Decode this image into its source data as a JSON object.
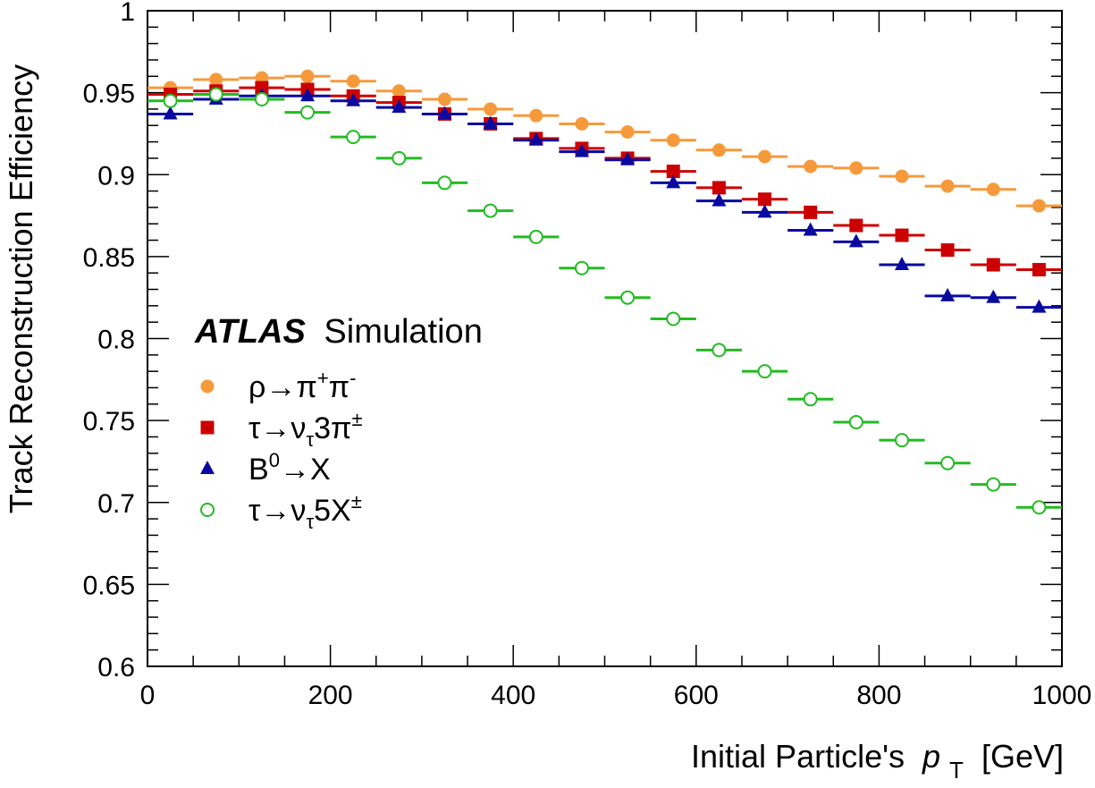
{
  "chart_data": {
    "type": "scatter",
    "xlabel": "Initial Particle's",
    "xlabel_var": "p",
    "xlabel_sub": "T",
    "xlabel_unit": "[GeV]",
    "ylabel": "Track Reconstruction Efficiency",
    "xlim": [
      0,
      1000
    ],
    "ylim": [
      0.6,
      1.0
    ],
    "x_ticks": [
      "0",
      "200",
      "400",
      "600",
      "800",
      "1000"
    ],
    "y_ticks": [
      "0.6",
      "0.65",
      "0.7",
      "0.75",
      "0.8",
      "0.85",
      "0.9",
      "0.95",
      "1"
    ],
    "bin_width": 50,
    "x": [
      25,
      75,
      125,
      175,
      225,
      275,
      325,
      375,
      425,
      475,
      525,
      575,
      625,
      675,
      725,
      775,
      825,
      875,
      925,
      975
    ],
    "legend_header_bold": "ATLAS",
    "legend_header": "Simulation",
    "legend_placement": "center-left",
    "series": [
      {
        "name": "ρ→π⁺π⁻",
        "marker": "circle",
        "color": "#f59a3b",
        "values": [
          0.953,
          0.958,
          0.959,
          0.96,
          0.957,
          0.951,
          0.946,
          0.94,
          0.936,
          0.931,
          0.926,
          0.921,
          0.915,
          0.911,
          0.905,
          0.904,
          0.899,
          0.893,
          0.891,
          0.881
        ]
      },
      {
        "name": "τ→ν_τ3π^±",
        "marker": "square",
        "color": "#cc0000",
        "values": [
          0.949,
          0.951,
          0.953,
          0.952,
          0.948,
          0.944,
          0.937,
          0.931,
          0.922,
          0.916,
          0.91,
          0.902,
          0.892,
          0.885,
          0.877,
          0.869,
          0.863,
          0.854,
          0.845,
          0.842
        ]
      },
      {
        "name": "B⁰→X",
        "marker": "triangle",
        "color": "#0a0aa0",
        "values": [
          0.937,
          0.946,
          0.948,
          0.948,
          0.945,
          0.941,
          0.937,
          0.931,
          0.921,
          0.914,
          0.909,
          0.895,
          0.884,
          0.877,
          0.866,
          0.859,
          0.845,
          0.826,
          0.825,
          0.819
        ]
      },
      {
        "name": "τ→ν_τ5X^±",
        "marker": "open-circle",
        "color": "#22bb22",
        "values": [
          0.945,
          0.949,
          0.946,
          0.938,
          0.923,
          0.91,
          0.895,
          0.878,
          0.862,
          0.843,
          0.825,
          0.812,
          0.793,
          0.78,
          0.763,
          0.749,
          0.738,
          0.724,
          0.711,
          0.697
        ]
      }
    ]
  }
}
